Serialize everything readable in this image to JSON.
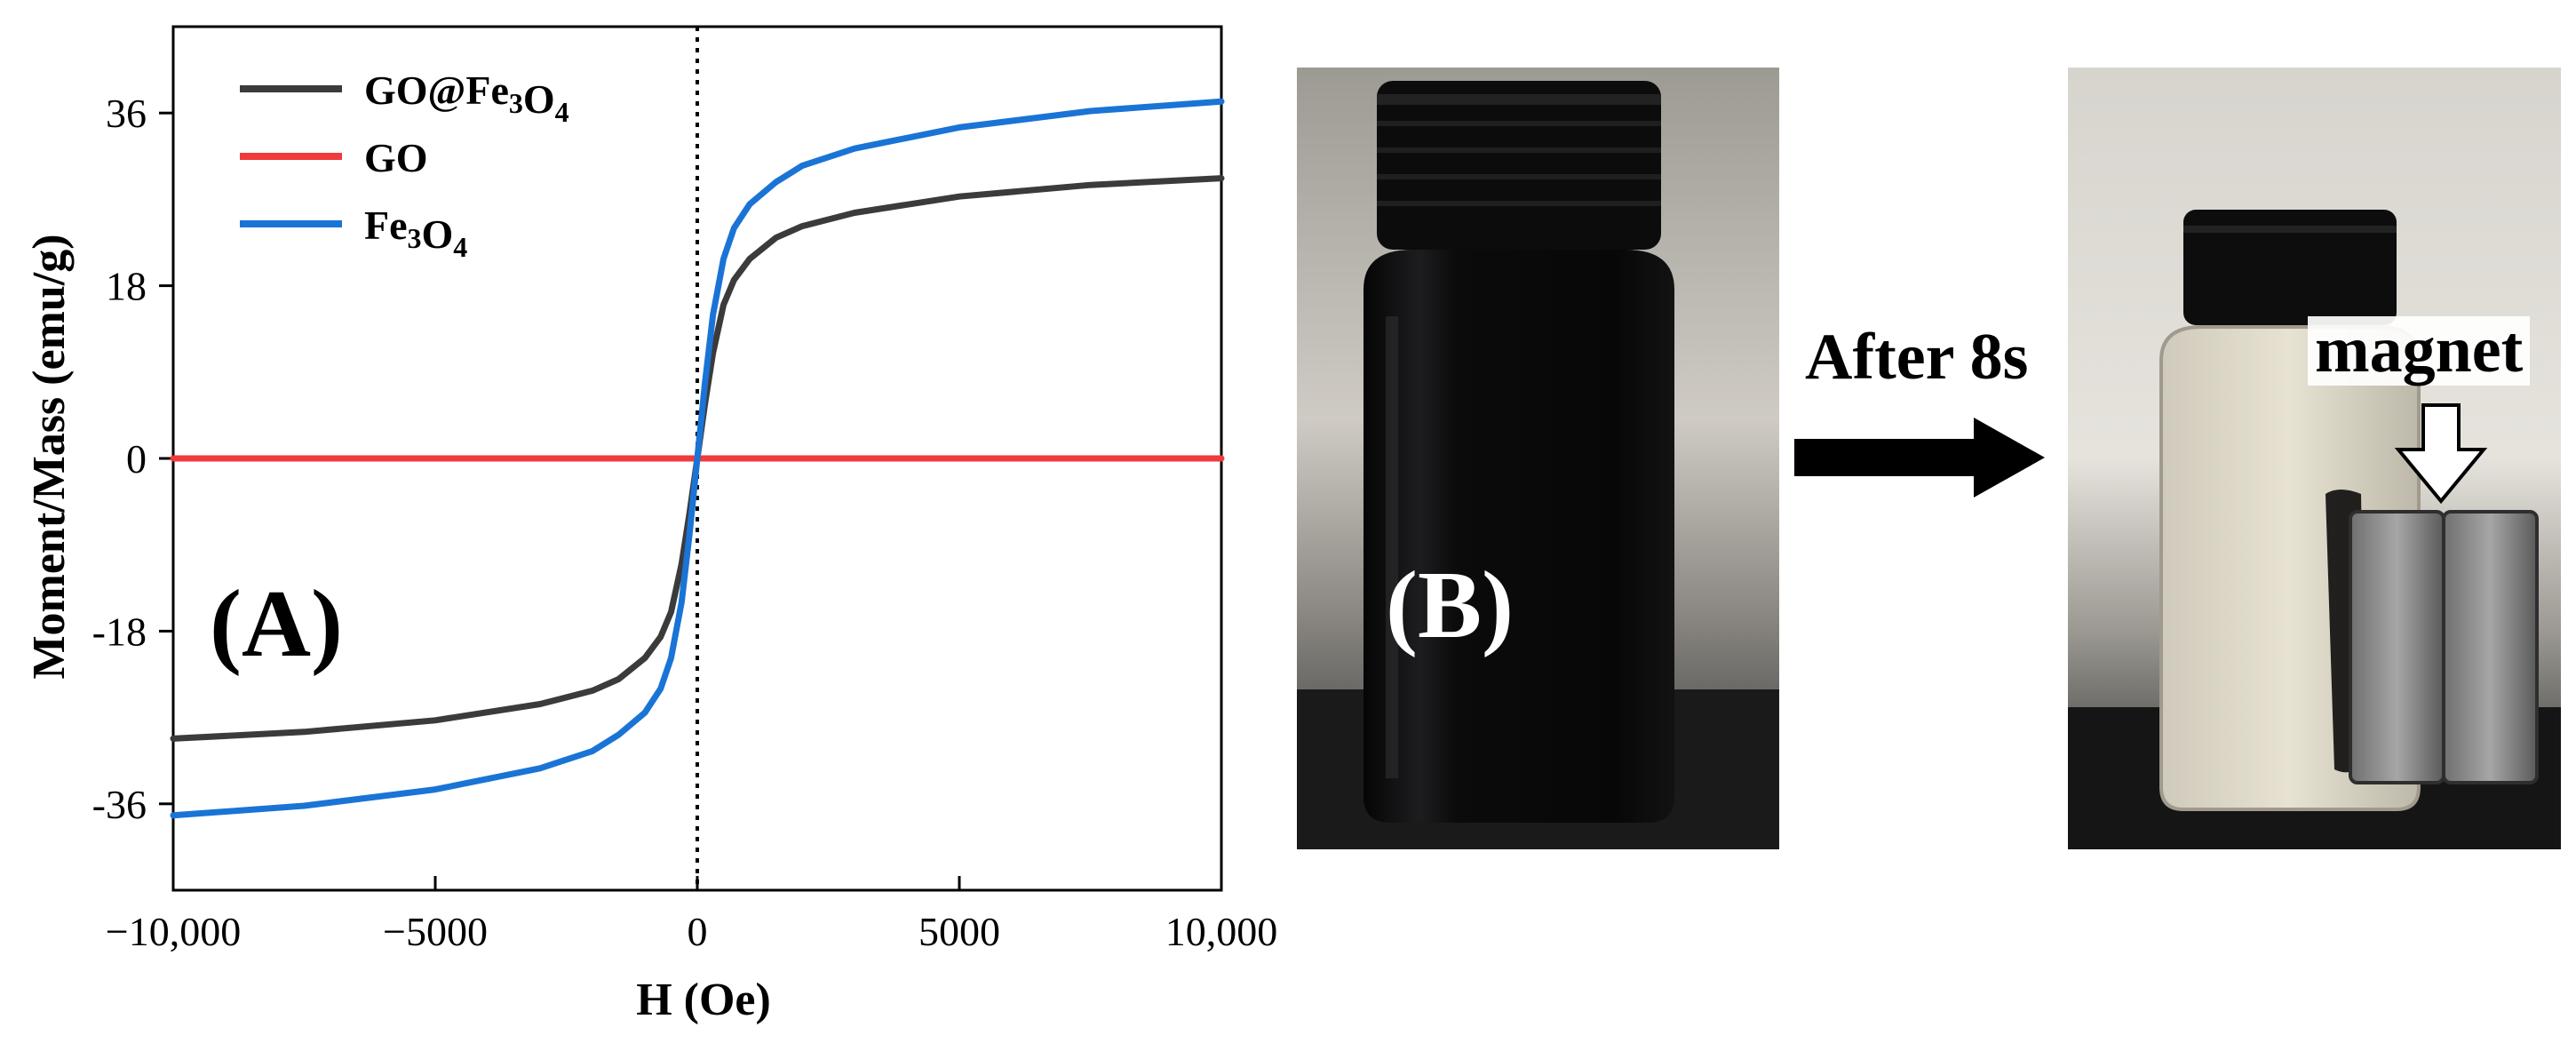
{
  "chart_data": {
    "type": "line",
    "panel_label": "(A)",
    "xlabel": "H (Oe)",
    "ylabel": "Moment/Mass (emu/g)",
    "xlim": [
      -10000,
      10000
    ],
    "ylim": [
      -45,
      45
    ],
    "xticks": [
      -10000,
      -5000,
      0,
      5000,
      10000
    ],
    "xtick_labels": [
      "−10,000",
      "−5000",
      "0",
      "5000",
      "10,000"
    ],
    "yticks": [
      -36,
      -18,
      0,
      18,
      36
    ],
    "ytick_labels": [
      "-36",
      "-18",
      "0",
      "18",
      "36"
    ],
    "grid": false,
    "legend_position": "top-left",
    "reference_line": {
      "x": 0,
      "style": "dotted"
    },
    "series": [
      {
        "name": "GO@Fe3O4",
        "legend_main": "GO@Fe",
        "legend_sub1": "3",
        "legend_mid": "O",
        "legend_sub2": "4",
        "color": "#3b3b3b",
        "x": [
          -10000,
          -7500,
          -5000,
          -3000,
          -2000,
          -1500,
          -1000,
          -700,
          -500,
          -300,
          -150,
          0,
          150,
          300,
          500,
          700,
          1000,
          1500,
          2000,
          3000,
          5000,
          7500,
          10000
        ],
        "y": [
          -29.2,
          -28.5,
          -27.3,
          -25.6,
          -24.2,
          -23.0,
          -20.8,
          -18.6,
          -16.0,
          -11.0,
          -5.8,
          0,
          5.8,
          11.0,
          16.0,
          18.6,
          20.8,
          23.0,
          24.2,
          25.6,
          27.3,
          28.5,
          29.2
        ]
      },
      {
        "name": "GO",
        "legend_main": "GO",
        "legend_sub1": "",
        "legend_mid": "",
        "legend_sub2": "",
        "color": "#ef3b3b",
        "x": [
          -10000,
          10000
        ],
        "y": [
          0,
          0
        ]
      },
      {
        "name": "Fe3O4",
        "legend_main": "Fe",
        "legend_sub1": "3",
        "legend_mid": "O",
        "legend_sub2": "4",
        "color": "#1a74d6",
        "x": [
          -10000,
          -7500,
          -5000,
          -3000,
          -2000,
          -1500,
          -1000,
          -700,
          -500,
          -300,
          -150,
          0,
          150,
          300,
          500,
          700,
          1000,
          1500,
          2000,
          3000,
          5000,
          7500,
          10000
        ],
        "y": [
          -37.2,
          -36.2,
          -34.5,
          -32.3,
          -30.5,
          -28.8,
          -26.5,
          -24.0,
          -20.8,
          -15.0,
          -8.0,
          0,
          8.0,
          15.0,
          20.8,
          24.0,
          26.5,
          28.8,
          30.5,
          32.3,
          34.5,
          36.2,
          37.2
        ]
      }
    ]
  },
  "photos": {
    "panel_label": "(B)",
    "transition_label": "After 8s",
    "magnet_label": "magnet"
  }
}
